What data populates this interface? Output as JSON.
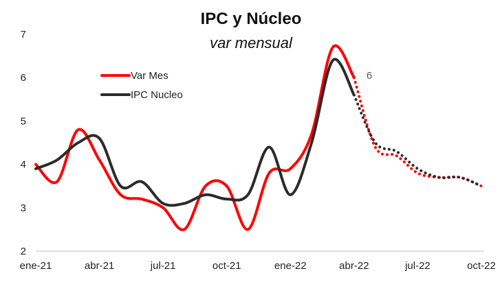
{
  "chart_data": {
    "type": "line",
    "title": "IPC y Núcleo",
    "subtitle": "var mensual",
    "xlabel": "",
    "ylabel": "",
    "x": [
      "ene-21",
      "feb-21",
      "mar-21",
      "abr-21",
      "may-21",
      "jun-21",
      "jul-21",
      "ago-21",
      "sep-21",
      "oct-21",
      "nov-21",
      "dic-21",
      "ene-22",
      "feb-22",
      "mar-22",
      "abr-22",
      "may-22",
      "jun-22",
      "jul-22",
      "ago-22",
      "sep-22",
      "oct-22"
    ],
    "x_tick_labels": [
      "ene-21",
      "abr-21",
      "jul-21",
      "oct-21",
      "ene-22",
      "abr-22",
      "jul-22",
      "oct-22"
    ],
    "x_tick_index": [
      0,
      3,
      6,
      9,
      12,
      15,
      18,
      21
    ],
    "ylim": [
      2,
      7
    ],
    "y_ticks": [
      2,
      3,
      4,
      5,
      6,
      7
    ],
    "grid": false,
    "legend_position": "top-left",
    "actual_end_index": 15,
    "series": [
      {
        "name": "Var Mes",
        "color": "#ff0000",
        "values": [
          4.0,
          3.6,
          4.8,
          4.1,
          3.3,
          3.2,
          3.0,
          2.5,
          3.5,
          3.5,
          2.5,
          3.8,
          3.9,
          4.7,
          6.7,
          6.0,
          4.4,
          4.2,
          3.8,
          3.7,
          3.7,
          3.5
        ]
      },
      {
        "name": "IPC Nucleo",
        "color": "#2b2b2b",
        "values": [
          3.9,
          4.1,
          4.5,
          4.6,
          3.5,
          3.6,
          3.1,
          3.1,
          3.3,
          3.2,
          3.3,
          4.4,
          3.3,
          4.5,
          6.4,
          5.6,
          4.5,
          4.3,
          3.9,
          3.7,
          3.7,
          3.5
        ]
      }
    ],
    "annotations": [
      {
        "text": "6",
        "series": "Var Mes",
        "index": 15
      }
    ]
  }
}
